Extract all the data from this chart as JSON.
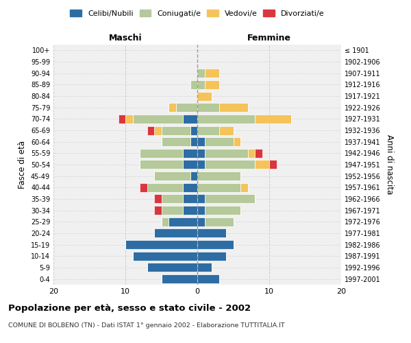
{
  "age_groups": [
    "100+",
    "95-99",
    "90-94",
    "85-89",
    "80-84",
    "75-79",
    "70-74",
    "65-69",
    "60-64",
    "55-59",
    "50-54",
    "45-49",
    "40-44",
    "35-39",
    "30-34",
    "25-29",
    "20-24",
    "15-19",
    "10-14",
    "5-9",
    "0-4"
  ],
  "birth_years": [
    "≤ 1901",
    "1902-1906",
    "1907-1911",
    "1912-1916",
    "1917-1921",
    "1922-1926",
    "1927-1931",
    "1932-1936",
    "1937-1941",
    "1942-1946",
    "1947-1951",
    "1952-1956",
    "1957-1961",
    "1962-1966",
    "1967-1971",
    "1972-1976",
    "1977-1981",
    "1982-1986",
    "1987-1991",
    "1992-1996",
    "1997-2001"
  ],
  "maschi": {
    "celibi": [
      0,
      0,
      0,
      0,
      0,
      0,
      2,
      1,
      1,
      2,
      2,
      1,
      2,
      2,
      2,
      4,
      6,
      10,
      9,
      7,
      5
    ],
    "coniugati": [
      0,
      0,
      0,
      1,
      0,
      3,
      7,
      4,
      4,
      6,
      6,
      5,
      5,
      3,
      3,
      1,
      0,
      0,
      0,
      0,
      0
    ],
    "vedovi": [
      0,
      0,
      0,
      0,
      0,
      1,
      1,
      1,
      0,
      0,
      0,
      0,
      0,
      0,
      0,
      0,
      0,
      0,
      0,
      0,
      0
    ],
    "divorziati": [
      0,
      0,
      0,
      0,
      0,
      0,
      1,
      1,
      0,
      0,
      0,
      0,
      1,
      1,
      1,
      0,
      0,
      0,
      0,
      0,
      0
    ]
  },
  "femmine": {
    "nubili": [
      0,
      0,
      0,
      0,
      0,
      0,
      0,
      0,
      1,
      1,
      1,
      0,
      0,
      1,
      1,
      1,
      4,
      5,
      4,
      2,
      3
    ],
    "coniugate": [
      0,
      0,
      1,
      1,
      0,
      3,
      8,
      3,
      4,
      6,
      7,
      6,
      6,
      7,
      5,
      4,
      0,
      0,
      0,
      0,
      0
    ],
    "vedove": [
      0,
      0,
      2,
      2,
      2,
      4,
      5,
      2,
      1,
      1,
      2,
      0,
      1,
      0,
      0,
      0,
      0,
      0,
      0,
      0,
      0
    ],
    "divorziate": [
      0,
      0,
      0,
      0,
      0,
      0,
      0,
      0,
      0,
      1,
      1,
      0,
      0,
      0,
      0,
      0,
      0,
      0,
      0,
      0,
      0
    ]
  },
  "colors": {
    "celibi": "#2e6da4",
    "coniugati": "#b5c99a",
    "vedovi": "#f5c35a",
    "divorziati": "#d9363e"
  },
  "xlim": 20,
  "title": "Popolazione per età, sesso e stato civile - 2002",
  "subtitle": "COMUNE DI BOLBENO (TN) - Dati ISTAT 1° gennaio 2002 - Elaborazione TUTTITALIA.IT",
  "ylabel": "Fasce di età",
  "ylabel_right": "Anni di nascita",
  "legend_labels": [
    "Celibi/Nubili",
    "Coniugati/e",
    "Vedovi/e",
    "Divorziati/e"
  ],
  "bg_color": "#f0f0f0",
  "grid_color": "#cccccc",
  "maschi_label": "Maschi",
  "femmine_label": "Femmine"
}
